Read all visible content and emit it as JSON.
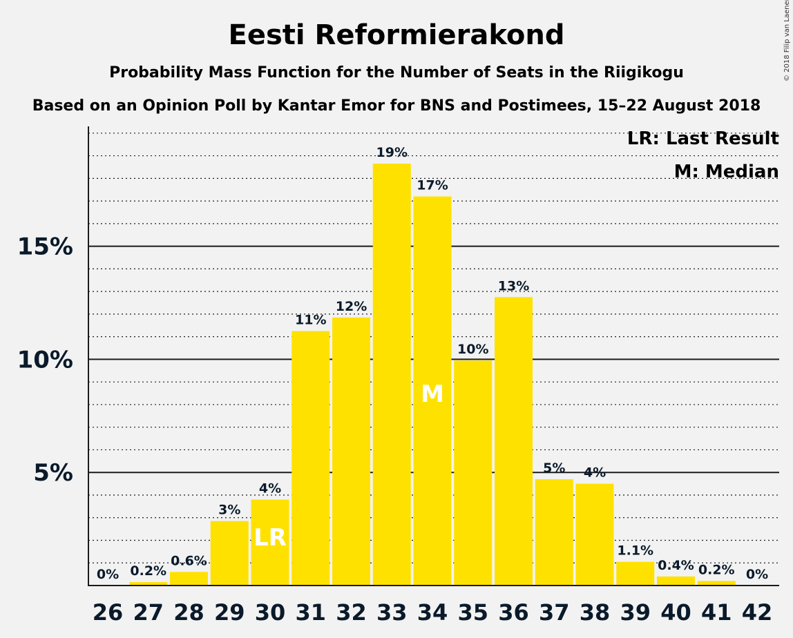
{
  "chart_data": {
    "type": "bar",
    "title": "Eesti Reformierakond",
    "subtitle": "Probability Mass Function for the Number of Seats in the Riigikogu",
    "subtitle2": "Based on an Opinion Poll by Kantar Emor for BNS and Postimees, 15–22 August 2018",
    "copyright": "© 2018 Filip van Laenen",
    "categories": [
      "26",
      "27",
      "28",
      "29",
      "30",
      "31",
      "32",
      "33",
      "34",
      "35",
      "36",
      "37",
      "38",
      "39",
      "40",
      "41",
      "42"
    ],
    "values": [
      0,
      0.15,
      0.6,
      2.85,
      3.8,
      11.25,
      11.85,
      18.65,
      17.2,
      9.95,
      12.75,
      4.7,
      4.5,
      1.05,
      0.4,
      0.2,
      0
    ],
    "labels": [
      "0%",
      "0.2%",
      "0.6%",
      "3%",
      "4%",
      "11%",
      "12%",
      "19%",
      "17%",
      "10%",
      "13%",
      "5%",
      "4%",
      "1.1%",
      "0.4%",
      "0.2%",
      "0%"
    ],
    "yticks": [
      {
        "value": 5,
        "label": "5%"
      },
      {
        "value": 10,
        "label": "10%"
      },
      {
        "value": 15,
        "label": "15%"
      }
    ],
    "ylim": [
      0,
      20.3
    ],
    "minor_grid_step": 1,
    "last_result": {
      "category": "30",
      "mark": "LR"
    },
    "median": {
      "category": "34",
      "mark": "M"
    },
    "legend": [
      "LR: Last Result",
      "M: Median"
    ],
    "legend_position": "top-right",
    "bar_color": "#ffe100",
    "grid_color": "#1a1a1a",
    "text_color": "#0a1a2a"
  }
}
